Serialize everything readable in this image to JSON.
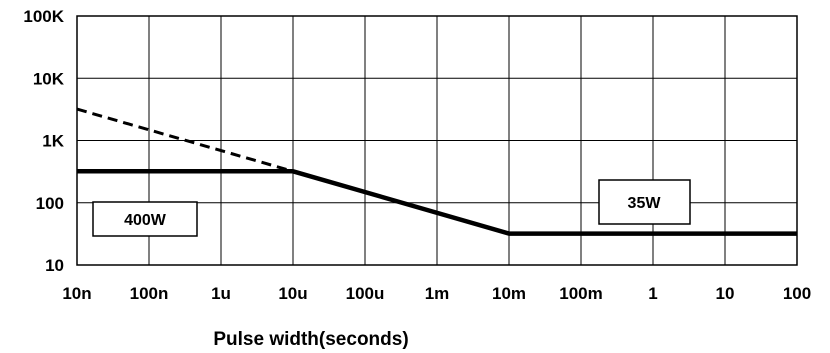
{
  "chart_data": {
    "type": "line",
    "xlabel": "Pulse width(seconds)",
    "ylabel": "",
    "x_scale": "log",
    "y_scale": "log",
    "xlim": [
      1e-08,
      100
    ],
    "ylim": [
      10,
      100000
    ],
    "grid": true,
    "x_ticks": [
      {
        "value": 1e-08,
        "label": "10n"
      },
      {
        "value": 1e-07,
        "label": "100n"
      },
      {
        "value": 1e-06,
        "label": "1u"
      },
      {
        "value": 1e-05,
        "label": "10u"
      },
      {
        "value": 0.0001,
        "label": "100u"
      },
      {
        "value": 0.001,
        "label": "1m"
      },
      {
        "value": 0.01,
        "label": "10m"
      },
      {
        "value": 0.1,
        "label": "100m"
      },
      {
        "value": 1,
        "label": "1"
      },
      {
        "value": 10,
        "label": "10"
      },
      {
        "value": 100,
        "label": "100"
      }
    ],
    "y_ticks": [
      {
        "value": 10,
        "label": "10"
      },
      {
        "value": 100,
        "label": "100"
      },
      {
        "value": 1000,
        "label": "1K"
      },
      {
        "value": 10000,
        "label": "10K"
      },
      {
        "value": 100000,
        "label": "100K"
      }
    ],
    "series": [
      {
        "style": "solid",
        "color": "#000000",
        "points": [
          {
            "x": 1e-08,
            "y": 320
          },
          {
            "x": 1e-05,
            "y": 320
          },
          {
            "x": 0.01,
            "y": 32
          },
          {
            "x": 100,
            "y": 32
          }
        ]
      },
      {
        "style": "dashed",
        "color": "#000000",
        "points": [
          {
            "x": 1e-08,
            "y": 3200
          },
          {
            "x": 1e-05,
            "y": 320
          }
        ]
      }
    ],
    "annotations": [
      {
        "text": "400W"
      },
      {
        "text": "35W"
      }
    ]
  }
}
